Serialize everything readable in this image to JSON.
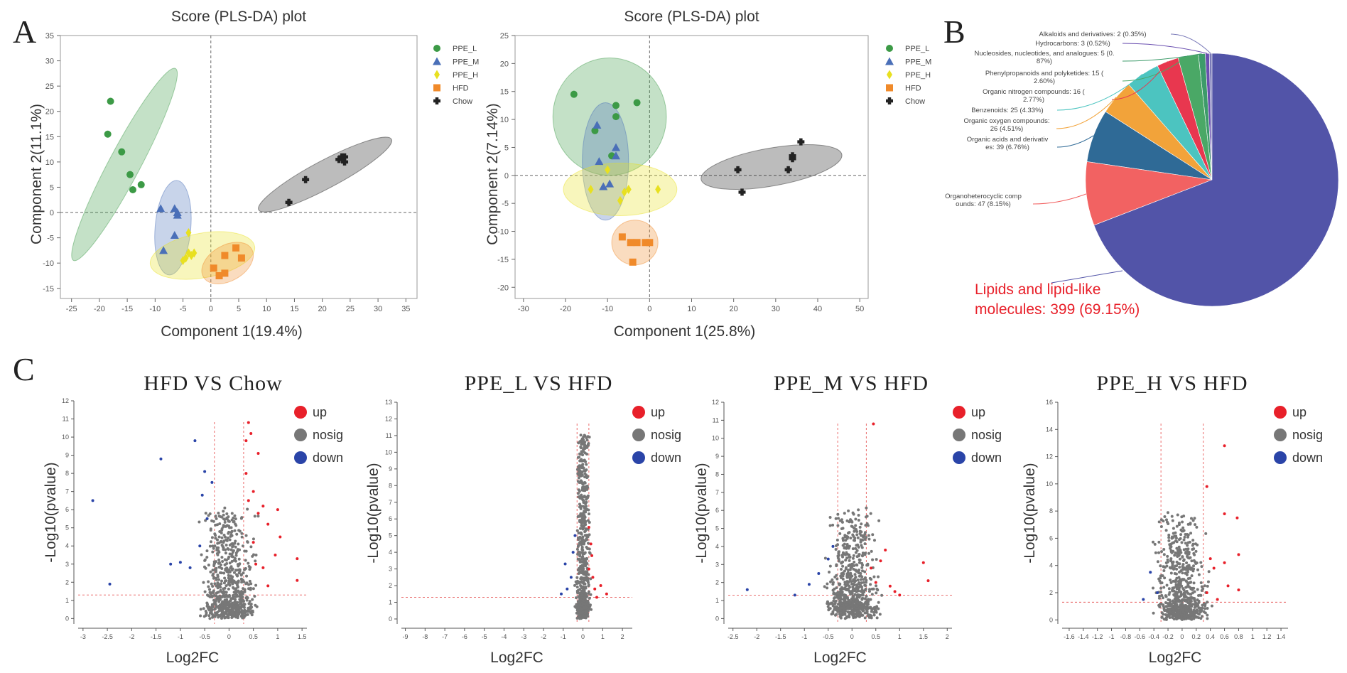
{
  "panels": {
    "A": "A",
    "B": "B",
    "C": "C"
  },
  "colors": {
    "PPE_L": "#3c9a46",
    "PPE_M": "#4a6fb8",
    "PPE_H": "#e8e020",
    "HFD": "#f08a2a",
    "Chow": "#222222",
    "up": "#e8202a",
    "nosig": "#777777",
    "down": "#2a44a8"
  },
  "chart_data": [
    {
      "id": "pls1",
      "type": "scatter",
      "title": "Score (PLS-DA) plot",
      "xlabel": "Component 1(19.4%)",
      "ylabel": "Component 2(11.1%)",
      "xlim": [
        -27,
        37
      ],
      "ylim": [
        -17,
        35
      ],
      "xticks": [
        -25,
        -20,
        -15,
        -10,
        -5,
        0,
        5,
        10,
        15,
        20,
        25,
        30,
        35
      ],
      "yticks": [
        -15,
        -10,
        -5,
        0,
        5,
        10,
        15,
        20,
        25,
        30,
        35
      ],
      "legend": [
        {
          "name": "PPE_L",
          "marker": "circle"
        },
        {
          "name": "PPE_M",
          "marker": "triangle"
        },
        {
          "name": "PPE_H",
          "marker": "diamond"
        },
        {
          "name": "HFD",
          "marker": "square"
        },
        {
          "name": "Chow",
          "marker": "cross"
        }
      ],
      "series": [
        {
          "name": "PPE_L",
          "points": [
            [
              -18,
              22
            ],
            [
              -18.5,
              15.5
            ],
            [
              -16,
              12
            ],
            [
              -14.5,
              7.5
            ],
            [
              -14,
              4.5
            ],
            [
              -12.5,
              5.5
            ]
          ]
        },
        {
          "name": "PPE_M",
          "points": [
            [
              -9,
              0.8
            ],
            [
              -6.5,
              0.8
            ],
            [
              -6,
              -0.5
            ],
            [
              -6.5,
              -4.5
            ],
            [
              -8.5,
              -7.5
            ],
            [
              -6,
              0
            ]
          ]
        },
        {
          "name": "PPE_H",
          "points": [
            [
              -4,
              -4
            ],
            [
              -3,
              -8
            ],
            [
              -4.5,
              -9
            ],
            [
              -3.5,
              -8.5
            ],
            [
              -5,
              -9.5
            ],
            [
              -4,
              -8
            ]
          ]
        },
        {
          "name": "HFD",
          "points": [
            [
              0.5,
              -11
            ],
            [
              2.5,
              -8.5
            ],
            [
              4.5,
              -7
            ],
            [
              5.5,
              -9
            ],
            [
              2.5,
              -12
            ],
            [
              1.5,
              -12.5
            ]
          ]
        },
        {
          "name": "Chow",
          "points": [
            [
              14,
              2
            ],
            [
              17,
              6.5
            ],
            [
              23,
              10.5
            ],
            [
              23.5,
              11
            ],
            [
              24,
              10
            ],
            [
              24,
              11
            ]
          ]
        }
      ],
      "ellipses": [
        {
          "name": "PPE_L",
          "cx": -15.5,
          "cy": 9.5,
          "rx": 19.5,
          "ry": 2.8,
          "angle": 62
        },
        {
          "name": "PPE_M",
          "cx": -6.8,
          "cy": -3,
          "rx": 8.5,
          "ry": 3.2,
          "angle": 85
        },
        {
          "name": "PPE_H",
          "cx": -1.5,
          "cy": -8.5,
          "rx": 9.5,
          "ry": 4.0,
          "angle": 10
        },
        {
          "name": "HFD",
          "cx": 3,
          "cy": -10,
          "rx": 5.0,
          "ry": 3.2,
          "angle": 30
        },
        {
          "name": "Chow",
          "cx": 20.5,
          "cy": 7.5,
          "rx": 13.5,
          "ry": 2.5,
          "angle": 28
        }
      ]
    },
    {
      "id": "pls2",
      "type": "scatter",
      "title": "Score (PLS-DA) plot",
      "xlabel": "Component 1(25.8%)",
      "ylabel": "Component 2(7.14%)",
      "xlim": [
        -32,
        52
      ],
      "ylim": [
        -22,
        25
      ],
      "xticks": [
        -30,
        -20,
        -10,
        0,
        10,
        20,
        30,
        40,
        50
      ],
      "yticks": [
        -20,
        -15,
        -10,
        -5,
        0,
        5,
        10,
        15,
        20,
        25
      ],
      "legend": [
        {
          "name": "PPE_L",
          "marker": "circle"
        },
        {
          "name": "PPE_M",
          "marker": "triangle"
        },
        {
          "name": "PPE_H",
          "marker": "diamond"
        },
        {
          "name": "HFD",
          "marker": "square"
        },
        {
          "name": "Chow",
          "marker": "cross"
        }
      ],
      "series": [
        {
          "name": "PPE_L",
          "points": [
            [
              -18,
              14.5
            ],
            [
              -8,
              12.5
            ],
            [
              -3,
              13
            ],
            [
              -8,
              10.5
            ],
            [
              -9,
              3.5
            ],
            [
              -13,
              8
            ]
          ]
        },
        {
          "name": "PPE_M",
          "points": [
            [
              -12.5,
              9
            ],
            [
              -12,
              2.5
            ],
            [
              -8,
              5
            ],
            [
              -8,
              3.5
            ],
            [
              -11,
              -2
            ],
            [
              -9.5,
              -1.5
            ]
          ]
        },
        {
          "name": "PPE_H",
          "points": [
            [
              -10,
              1
            ],
            [
              -14,
              -2.5
            ],
            [
              -5,
              -2.5
            ],
            [
              -6,
              -3
            ],
            [
              -7,
              -4.5
            ],
            [
              2,
              -2.5
            ]
          ]
        },
        {
          "name": "HFD",
          "points": [
            [
              -6.5,
              -11
            ],
            [
              -4.5,
              -12
            ],
            [
              -3,
              -12
            ],
            [
              -1,
              -12
            ],
            [
              -4,
              -15.5
            ],
            [
              0,
              -12
            ]
          ]
        },
        {
          "name": "Chow",
          "points": [
            [
              21,
              1
            ],
            [
              22,
              -3
            ],
            [
              34,
              3
            ],
            [
              34,
              3.5
            ],
            [
              33,
              1
            ],
            [
              36,
              6
            ]
          ]
        }
      ],
      "ellipses": [
        {
          "name": "PPE_L",
          "cx": -9.5,
          "cy": 10.5,
          "rx": 13.5,
          "ry": 10.5,
          "angle": 0
        },
        {
          "name": "PPE_M",
          "cx": -10.5,
          "cy": 2.5,
          "rx": 5.5,
          "ry": 10.5,
          "angle": 0
        },
        {
          "name": "PPE_H",
          "cx": -7,
          "cy": -2.5,
          "rx": 13.5,
          "ry": 4.7,
          "angle": 0
        },
        {
          "name": "HFD",
          "cx": -3.5,
          "cy": -12,
          "rx": 5.5,
          "ry": 4.0,
          "angle": 0
        },
        {
          "name": "Chow",
          "cx": 29,
          "cy": 1.5,
          "rx": 17,
          "ry": 4.5,
          "angle": 10
        }
      ]
    },
    {
      "id": "pie",
      "type": "pie",
      "categories": [
        "Lipids and lipid-like molecules",
        "Organoheterocyclic compounds",
        "Organic acids and derivatives",
        "Organic oxygen compounds",
        "Benzenoids",
        "Organic nitrogen compounds",
        "Phenylpropanoids and polyketides",
        "Nucleosides, nucleotides, and analogues",
        "Hydrocarbons",
        "Alkaloids and derivatives"
      ],
      "values": [
        399,
        47,
        39,
        26,
        25,
        16,
        15,
        5,
        3,
        2
      ],
      "percents": [
        69.15,
        8.15,
        6.76,
        4.51,
        4.33,
        2.77,
        2.6,
        0.87,
        0.52,
        0.35
      ],
      "slice_colors": [
        "#5254a8",
        "#f26262",
        "#2f6a96",
        "#f2a33a",
        "#4cc4c0",
        "#e8374f",
        "#4aa866",
        "#3d9b6a",
        "#6a4fb0",
        "#7a7ab8"
      ],
      "labels": [
        [
          "Lipids and lipid-like",
          "molecules: 399 (69.15%)"
        ],
        [
          "Organoheterocyclic comp",
          "ounds: 47 (8.15%)"
        ],
        [
          "Organic acids and derivativ",
          "es: 39 (6.76%)"
        ],
        [
          "Organic oxygen compounds:",
          "26 (4.51%)"
        ],
        [
          "Benzenoids: 25 (4.33%)"
        ],
        [
          "Organic nitrogen compounds: 16 (",
          "2.77%)"
        ],
        [
          "Phenylpropanoids and polyketides: 15 (",
          "2.60%)"
        ],
        [
          "Nucleosides, nucleotides, and analogues: 5 (0.",
          "87%)"
        ],
        [
          "Hydrocarbons: 3 (0.52%)"
        ],
        [
          "Alkaloids and derivatives: 2 (0.35%)"
        ]
      ]
    },
    {
      "id": "v1",
      "type": "scatter",
      "title": "HFD  VS  Chow",
      "xlabel": "Log2FC",
      "ylabel": "-Log10(pvalue)",
      "xlim": [
        -3.1,
        1.6
      ],
      "ylim": [
        -0.3,
        12
      ],
      "xticks": [
        -3,
        -2.5,
        -2,
        -1.5,
        -1,
        -0.5,
        0,
        0.5,
        1,
        1.5
      ],
      "yticks": [
        0,
        1,
        2,
        3,
        4,
        5,
        6,
        7,
        8,
        9,
        10,
        11,
        12
      ],
      "xthresh": [
        -0.3,
        0.3
      ],
      "ythresh": 1.3,
      "legend": [
        "up",
        "nosig",
        "down"
      ],
      "series": [
        {
          "name": "up",
          "points": [
            [
              0.4,
              10.8
            ],
            [
              0.45,
              10.2
            ],
            [
              0.35,
              9.8
            ],
            [
              0.6,
              9.1
            ],
            [
              0.7,
              6.2
            ],
            [
              1.0,
              6.0
            ],
            [
              0.8,
              5.2
            ],
            [
              0.6,
              5.8
            ],
            [
              0.5,
              7.0
            ],
            [
              1.05,
              4.5
            ],
            [
              1.4,
              3.3
            ],
            [
              1.4,
              2.1
            ],
            [
              0.95,
              3.5
            ],
            [
              0.7,
              2.8
            ],
            [
              0.5,
              4.2
            ],
            [
              0.4,
              6.5
            ],
            [
              0.35,
              8.0
            ],
            [
              0.55,
              3.0
            ],
            [
              0.8,
              1.8
            ]
          ]
        },
        {
          "name": "nosig",
          "points": []
        },
        {
          "name": "down",
          "points": [
            [
              -1.4,
              8.8
            ],
            [
              -0.7,
              9.8
            ],
            [
              -0.5,
              8.1
            ],
            [
              -2.8,
              6.5
            ],
            [
              -2.45,
              1.9
            ],
            [
              -0.6,
              4.0
            ],
            [
              -0.8,
              2.8
            ],
            [
              -1.0,
              3.1
            ],
            [
              -0.45,
              5.5
            ],
            [
              -0.55,
              6.8
            ],
            [
              -0.35,
              7.5
            ],
            [
              -1.2,
              3.0
            ]
          ]
        }
      ]
    },
    {
      "id": "v2",
      "type": "scatter",
      "title": "PPE_L  VS  HFD",
      "xlabel": "Log2FC",
      "ylabel": "-Log10(pvalue)",
      "xlim": [
        -9.2,
        2.5
      ],
      "ylim": [
        -0.3,
        13
      ],
      "xticks": [
        -9,
        -8,
        -7,
        -6,
        -5,
        -4,
        -3,
        -2,
        -1,
        0,
        1,
        2
      ],
      "yticks": [
        0,
        1,
        2,
        3,
        4,
        5,
        6,
        7,
        8,
        9,
        10,
        11,
        12,
        13
      ],
      "xthresh": [
        -0.3,
        0.3
      ],
      "ythresh": 1.3,
      "legend": [
        "up",
        "nosig",
        "down"
      ],
      "series": [
        {
          "name": "up",
          "points": [
            [
              0.3,
              3.0
            ],
            [
              0.5,
              2.5
            ],
            [
              0.6,
              1.8
            ],
            [
              0.9,
              2.0
            ],
            [
              1.2,
              1.5
            ],
            [
              0.4,
              4.5
            ],
            [
              0.3,
              5.5
            ],
            [
              0.7,
              1.3
            ],
            [
              0.45,
              3.8
            ]
          ]
        },
        {
          "name": "nosig",
          "points": []
        },
        {
          "name": "down",
          "points": [
            [
              -0.6,
              2.5
            ],
            [
              -0.8,
              1.8
            ],
            [
              -0.9,
              3.3
            ],
            [
              -0.5,
              4.0
            ],
            [
              -1.1,
              1.5
            ],
            [
              -0.4,
              5.0
            ]
          ]
        }
      ]
    },
    {
      "id": "v3",
      "type": "scatter",
      "title": "PPE_M  VS  HFD",
      "xlabel": "Log2FC",
      "ylabel": "-Log10(pvalue)",
      "xlim": [
        -2.6,
        2.1
      ],
      "ylim": [
        -0.3,
        12
      ],
      "xticks": [
        -2.5,
        -2,
        -1.5,
        -1,
        -0.5,
        0,
        0.5,
        1,
        1.5,
        2
      ],
      "yticks": [
        0,
        1,
        2,
        3,
        4,
        5,
        6,
        7,
        8,
        9,
        10,
        11,
        12
      ],
      "xthresh": [
        -0.3,
        0.3
      ],
      "ythresh": 1.3,
      "legend": [
        "up",
        "nosig",
        "down"
      ],
      "series": [
        {
          "name": "up",
          "points": [
            [
              0.45,
              10.8
            ],
            [
              0.7,
              3.8
            ],
            [
              0.6,
              3.2
            ],
            [
              1.5,
              3.1
            ],
            [
              1.6,
              2.1
            ],
            [
              0.9,
              1.5
            ],
            [
              0.5,
              2.0
            ],
            [
              0.8,
              1.8
            ],
            [
              0.4,
              2.8
            ],
            [
              1.0,
              1.3
            ]
          ]
        },
        {
          "name": "nosig",
          "points": []
        },
        {
          "name": "down",
          "points": [
            [
              -2.2,
              1.6
            ],
            [
              -0.7,
              2.5
            ],
            [
              -0.5,
              3.3
            ],
            [
              -0.9,
              1.9
            ],
            [
              -0.4,
              4.0
            ],
            [
              -1.2,
              1.3
            ]
          ]
        }
      ]
    },
    {
      "id": "v4",
      "type": "scatter",
      "title": "PPE_H  VS  HFD",
      "xlabel": "Log2FC",
      "ylabel": "-Log10(pvalue)",
      "xlim": [
        -1.7,
        1.5
      ],
      "ylim": [
        -0.3,
        16
      ],
      "xticks": [
        -1.6,
        -1.4,
        -1.2,
        -1,
        -0.8,
        -0.6,
        -0.4,
        -0.2,
        0,
        0.2,
        0.4,
        0.6,
        0.8,
        1,
        1.2,
        1.4
      ],
      "yticks": [
        0,
        2,
        4,
        6,
        8,
        10,
        12,
        14,
        16
      ],
      "xthresh": [
        -0.3,
        0.3
      ],
      "ythresh": 1.3,
      "legend": [
        "up",
        "nosig",
        "down"
      ],
      "series": [
        {
          "name": "up",
          "points": [
            [
              0.6,
              12.8
            ],
            [
              0.35,
              9.8
            ],
            [
              0.6,
              7.8
            ],
            [
              0.78,
              7.5
            ],
            [
              0.8,
              4.8
            ],
            [
              0.6,
              4.2
            ],
            [
              0.4,
              4.5
            ],
            [
              0.45,
              3.8
            ],
            [
              0.65,
              2.5
            ],
            [
              0.8,
              2.2
            ],
            [
              0.35,
              2.0
            ],
            [
              0.5,
              1.5
            ]
          ]
        },
        {
          "name": "nosig",
          "points": []
        },
        {
          "name": "down",
          "points": [
            [
              -0.45,
              3.5
            ],
            [
              -0.35,
              2.0
            ],
            [
              -0.55,
              1.5
            ]
          ]
        }
      ]
    }
  ]
}
